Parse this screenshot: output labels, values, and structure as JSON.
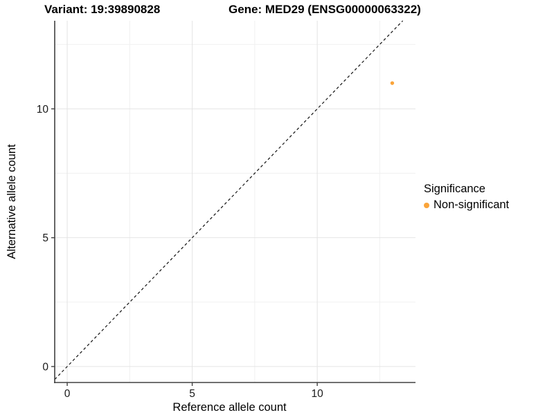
{
  "chart_data": {
    "type": "scatter",
    "title_left": "Variant: 19:39890828",
    "title_right": "Gene: MED29 (ENSG00000063322)",
    "xlabel": "Reference allele count",
    "ylabel": "Alternative allele count",
    "xlim": [
      -0.5,
      13.93
    ],
    "ylim": [
      -0.62,
      13.42
    ],
    "xticks": [
      0,
      5,
      10
    ],
    "yticks": [
      0,
      5,
      10
    ],
    "minor_gridlines_x": [
      2.5,
      7.5,
      12.5
    ],
    "minor_gridlines_y": [
      2.5,
      7.5,
      12.5
    ],
    "grid": true,
    "legend_position": "right",
    "identity_line": {
      "style": "dashed",
      "slope": 1,
      "intercept": 0,
      "from": -0.5,
      "to": 13.42
    },
    "points": [
      {
        "x": 13,
        "y": 11,
        "series": "Non-significant"
      }
    ],
    "legend": {
      "title": "Significance",
      "entries": [
        {
          "label": "Non-significant",
          "color": "#FAA43A"
        }
      ]
    },
    "colors": {
      "point": "#FAA43A",
      "grid_major": "#e4e4e4",
      "grid_minor": "#f0f0f0",
      "axis_line": "#404040",
      "tick_text": "#1a1a1a",
      "identity_line": "#111111",
      "title_text": "#000000"
    }
  }
}
